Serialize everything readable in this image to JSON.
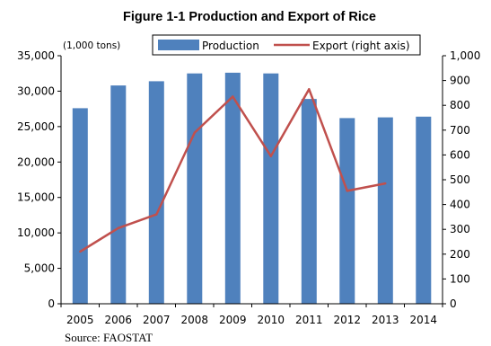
{
  "chart_data": {
    "type": "bar",
    "title": "Figure 1-1 Production and Export of Rice",
    "unit_label": "(1,000 tons)",
    "source": "Source: FAOSTAT",
    "categories": [
      "2005",
      "2006",
      "2007",
      "2008",
      "2009",
      "2010",
      "2011",
      "2012",
      "2013",
      "2014"
    ],
    "series": [
      {
        "name": "Production",
        "type": "bar",
        "axis": "left",
        "color": "#4f81bd",
        "values": [
          27600,
          30800,
          31400,
          32500,
          32600,
          32500,
          28900,
          26200,
          26300,
          26400
        ]
      },
      {
        "name": "Export (right axis)",
        "type": "line",
        "axis": "right",
        "color": "#c0504d",
        "values": [
          210,
          305,
          360,
          690,
          835,
          595,
          865,
          455,
          485,
          null
        ]
      }
    ],
    "y_left": {
      "min": 0,
      "max": 35000,
      "ticks": [
        0,
        5000,
        10000,
        15000,
        20000,
        25000,
        30000,
        35000
      ],
      "tick_labels": [
        "0",
        "5,000",
        "10,000",
        "15,000",
        "20,000",
        "25,000",
        "30,000",
        "35,000"
      ]
    },
    "y_right": {
      "min": 0,
      "max": 1000,
      "ticks": [
        0,
        100,
        200,
        300,
        400,
        500,
        600,
        700,
        800,
        900,
        1000
      ],
      "tick_labels": [
        "0",
        "100",
        "200",
        "300",
        "400",
        "500",
        "600",
        "700",
        "800",
        "900",
        "1,000"
      ]
    },
    "grid": false,
    "legend_position": "top-center"
  }
}
